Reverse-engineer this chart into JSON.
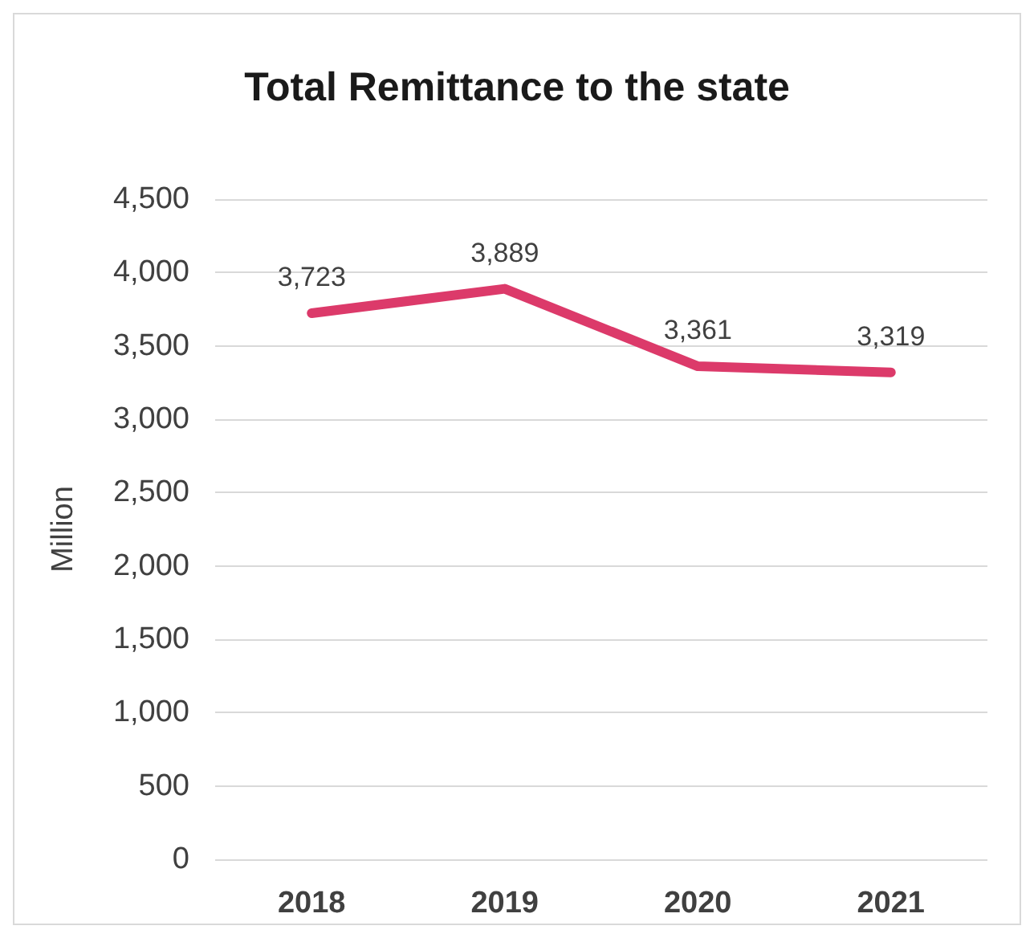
{
  "chart_data": {
    "type": "line",
    "title": "Total Remittance to the state",
    "ylabel": "Million",
    "categories": [
      "2018",
      "2019",
      "2020",
      "2021"
    ],
    "series": [
      {
        "color": "#dc3a6a",
        "values": [
          3723,
          3889,
          3361,
          3319
        ],
        "value_labels": [
          "3,723",
          "3,889",
          "3,361",
          "3,319"
        ]
      }
    ],
    "ylim": [
      0,
      4500
    ],
    "yticks": [
      0,
      500,
      {
        "value": 1000,
        "label": "1,000"
      },
      {
        "value": 1500,
        "label": "1,500"
      },
      {
        "value": 2000,
        "label": "2,000"
      },
      {
        "value": 2500,
        "label": "2,500"
      },
      {
        "value": 3000,
        "label": "3,000"
      },
      {
        "value": 3500,
        "label": "3,500"
      },
      {
        "value": 4000,
        "label": "4,000"
      },
      {
        "value": 4500,
        "label": "4,500"
      }
    ],
    "grid": "y",
    "marker": "none",
    "line_style": "solid"
  }
}
